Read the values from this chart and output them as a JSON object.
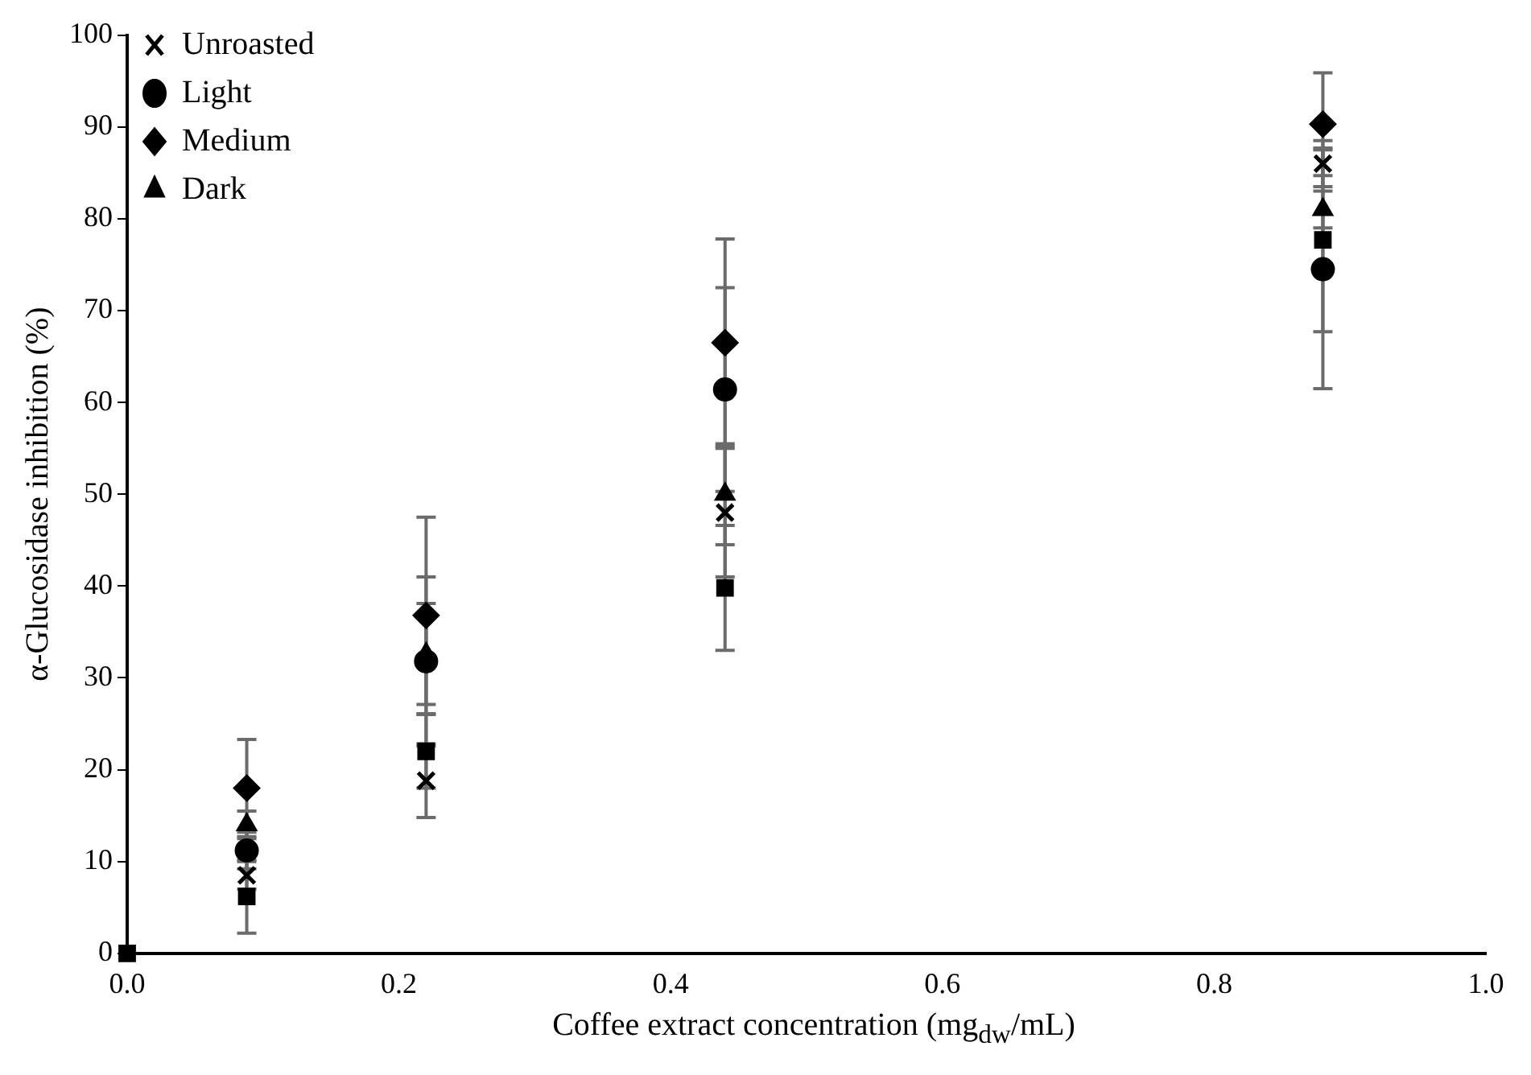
{
  "chart_data": {
    "type": "scatter",
    "xlabel": "Coffee extract concentration (mg$_{dw}$/mL)",
    "ylabel": "α-Glucosidase inhibition (%)",
    "x": [
      0,
      0.088,
      0.22,
      0.44,
      0.88
    ],
    "series": [
      {
        "name": "Unroasted",
        "color": "#000000",
        "marker": "cross",
        "values": [
          null,
          8.5,
          18.8,
          48,
          86
        ],
        "errors": [
          null,
          1.5,
          4,
          7,
          2.5
        ]
      },
      {
        "name": "Light",
        "color": "#000000",
        "marker": "circle",
        "values": [
          null,
          11.2,
          31.8,
          61.4,
          74.5
        ],
        "errors": [
          null,
          2,
          9.2,
          11.1,
          13
        ]
      },
      {
        "name": "Medium",
        "color": "#000000",
        "marker": "diamond",
        "values": [
          null,
          18,
          36.8,
          66.5,
          90.3
        ],
        "errors": [
          null,
          5.3,
          10.7,
          11.3,
          5.6
        ]
      },
      {
        "name": "Dark",
        "color": "#000000",
        "marker": "triangle",
        "values": [
          null,
          14,
          32.6,
          50,
          81
        ],
        "errors": [
          null,
          1.5,
          5.5,
          5.5,
          2
        ]
      },
      {
        "color": "#000000",
        "marker": "square",
        "values": [
          0,
          6.2,
          22,
          39.8,
          77.7
        ],
        "errors": [
          null,
          4,
          4,
          6.8,
          10
        ]
      }
    ],
    "xlim": [
      0,
      1
    ],
    "xticks": [
      {
        "value": 0,
        "label": "0.0"
      },
      0.2,
      0.4,
      0.6,
      0.8,
      {
        "value": 1,
        "label": "1.0"
      }
    ],
    "ylim": [
      0,
      100
    ],
    "yticks": [
      0,
      10,
      20,
      30,
      40,
      50,
      60,
      70,
      80,
      90,
      100
    ],
    "grid": false,
    "legend": "top left"
  }
}
